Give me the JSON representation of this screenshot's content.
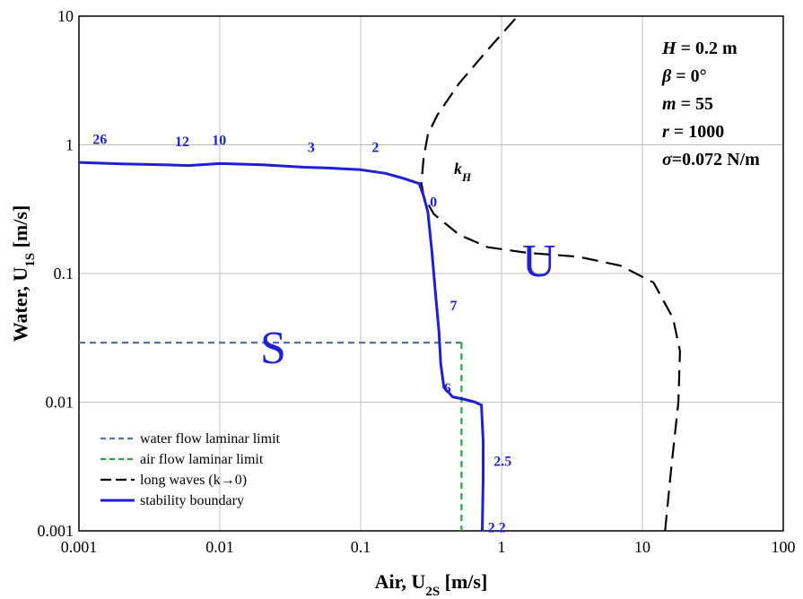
{
  "chart_data": {
    "type": "line",
    "x_scale": "log",
    "y_scale": "log",
    "xlim": [
      0.001,
      100
    ],
    "ylim": [
      0.001,
      10
    ],
    "grid": true,
    "x_ticks": [
      "0.001",
      "0.01",
      "0.1",
      "1",
      "10",
      "100"
    ],
    "y_ticks": [
      "0.001",
      "0.01",
      "0.1",
      "1",
      "10"
    ],
    "xlabel": {
      "pre": "Air, U",
      "sub": "2S",
      "post": " [m/s]"
    },
    "ylabel": {
      "pre": "Water, U",
      "sub": "1S",
      "post": " [m/s]"
    },
    "parameters": [
      {
        "sym": "H",
        "text": " = 0.2 m"
      },
      {
        "sym": "β",
        "text": " = 0°"
      },
      {
        "sym": "m",
        "text": " = 55"
      },
      {
        "sym": "r",
        "text": " = 1000"
      },
      {
        "sym": "σ",
        "text": "=0.072 N/m"
      }
    ],
    "region_labels": {
      "stable": "S",
      "unstable": "U"
    },
    "kh_label": {
      "main": "k",
      "sub": "H"
    },
    "legend_position": "bottom-left",
    "colors": {
      "stability": "#1f1fd6",
      "water_laminar": "#4a72b0",
      "air_laminar": "#1fa84a",
      "long_waves": "#000000"
    },
    "series": [
      {
        "name": "water flow laminar limit",
        "style": "dashed",
        "color": "#4a72b0",
        "points": [
          [
            0.001,
            0.029
          ],
          [
            0.52,
            0.029
          ]
        ]
      },
      {
        "name": "air flow laminar limit",
        "style": "dashed",
        "color": "#1fa84a",
        "points": [
          [
            0.52,
            0.029
          ],
          [
            0.52,
            0.001
          ]
        ]
      },
      {
        "name": "long waves (k→0)",
        "style": "longdash",
        "color": "#000000",
        "points": [
          [
            14.5,
            0.001
          ],
          [
            16,
            0.003
          ],
          [
            18,
            0.01
          ],
          [
            18.5,
            0.025
          ],
          [
            16.5,
            0.045
          ],
          [
            12,
            0.085
          ],
          [
            7,
            0.115
          ],
          [
            3.5,
            0.135
          ],
          [
            1.5,
            0.145
          ],
          [
            0.8,
            0.16
          ],
          [
            0.5,
            0.2
          ],
          [
            0.33,
            0.29
          ],
          [
            0.28,
            0.4
          ],
          [
            0.27,
            0.5
          ],
          [
            0.28,
            0.8
          ],
          [
            0.3,
            1.2
          ],
          [
            0.35,
            1.7
          ],
          [
            0.5,
            3
          ],
          [
            0.8,
            5.5
          ],
          [
            1.3,
            10
          ]
        ]
      },
      {
        "name": "stability boundary",
        "style": "solid",
        "color": "#1f1fd6",
        "points": [
          [
            0.001,
            0.73
          ],
          [
            0.002,
            0.71
          ],
          [
            0.004,
            0.7
          ],
          [
            0.006,
            0.69
          ],
          [
            0.01,
            0.715
          ],
          [
            0.02,
            0.7
          ],
          [
            0.04,
            0.67
          ],
          [
            0.06,
            0.66
          ],
          [
            0.1,
            0.64
          ],
          [
            0.15,
            0.6
          ],
          [
            0.2,
            0.55
          ],
          [
            0.26,
            0.5
          ],
          [
            0.28,
            0.4
          ],
          [
            0.3,
            0.3
          ],
          [
            0.32,
            0.15
          ],
          [
            0.34,
            0.07
          ],
          [
            0.36,
            0.035
          ],
          [
            0.37,
            0.02
          ],
          [
            0.39,
            0.013
          ],
          [
            0.45,
            0.011
          ],
          [
            0.55,
            0.0105
          ],
          [
            0.65,
            0.01
          ],
          [
            0.72,
            0.0095
          ],
          [
            0.74,
            0.005
          ],
          [
            0.74,
            0.0025
          ],
          [
            0.73,
            0.001
          ]
        ]
      }
    ],
    "point_labels": [
      {
        "text": "26",
        "x": 0.00125,
        "y": 1.02
      },
      {
        "text": "12",
        "x": 0.0048,
        "y": 0.98
      },
      {
        "text": "10",
        "x": 0.0088,
        "y": 1.0
      },
      {
        "text": "3",
        "x": 0.042,
        "y": 0.88
      },
      {
        "text": "2",
        "x": 0.12,
        "y": 0.88
      },
      {
        "text": "0",
        "x": 0.31,
        "y": 0.33
      },
      {
        "text": "7",
        "x": 0.43,
        "y": 0.052
      },
      {
        "text": "6",
        "x": 0.39,
        "y": 0.0118
      },
      {
        "text": "2.5",
        "x": 0.88,
        "y": 0.0032
      },
      {
        "text": "2.2",
        "x": 0.8,
        "y": 0.00098
      }
    ]
  }
}
